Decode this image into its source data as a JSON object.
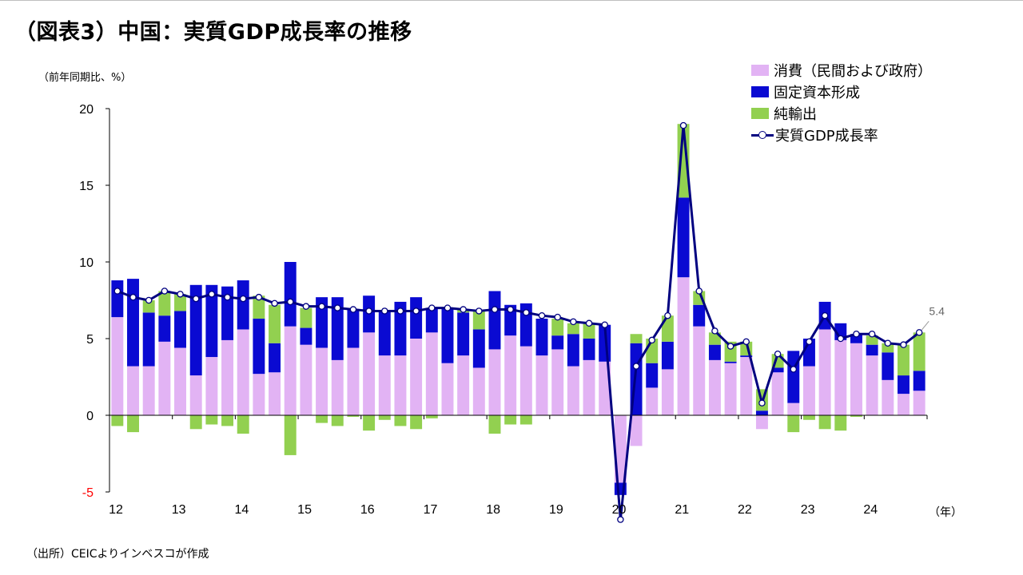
{
  "title": "（図表3）中国：実質GDP成長率の推移",
  "unit_label": "（前年同期比、%）",
  "source": "（出所）CEICよりインベスコが作成",
  "colors": {
    "consumption": "#e2b3f4",
    "investment": "#0a0ad2",
    "net_exports": "#92d050",
    "gdp_line": "#000080",
    "negative_tick": "#ff0000"
  },
  "legend": [
    {
      "key": "consumption",
      "label": "消費（民間および政府）"
    },
    {
      "key": "investment",
      "label": "固定資本形成"
    },
    {
      "key": "net_exports",
      "label": "純輸出"
    },
    {
      "key": "gdp",
      "label": "実質GDP成長率"
    }
  ],
  "chart_data": {
    "type": "bar",
    "stacked": true,
    "ylim": [
      -5,
      20
    ],
    "yticks": [
      -5,
      0,
      5,
      10,
      15,
      20
    ],
    "xlabel": "（年）",
    "year_labels": [
      "12",
      "13",
      "14",
      "15",
      "16",
      "17",
      "18",
      "19",
      "20",
      "21",
      "22",
      "23",
      "24"
    ],
    "quarters": [
      "2012Q1",
      "2012Q2",
      "2012Q3",
      "2012Q4",
      "2013Q1",
      "2013Q2",
      "2013Q3",
      "2013Q4",
      "2014Q1",
      "2014Q2",
      "2014Q3",
      "2014Q4",
      "2015Q1",
      "2015Q2",
      "2015Q3",
      "2015Q4",
      "2016Q1",
      "2016Q2",
      "2016Q3",
      "2016Q4",
      "2017Q1",
      "2017Q2",
      "2017Q3",
      "2017Q4",
      "2018Q1",
      "2018Q2",
      "2018Q3",
      "2018Q4",
      "2019Q1",
      "2019Q2",
      "2019Q3",
      "2019Q4",
      "2020Q1",
      "2020Q2",
      "2020Q3",
      "2020Q4",
      "2021Q1",
      "2021Q2",
      "2021Q3",
      "2021Q4",
      "2022Q1",
      "2022Q2",
      "2022Q3",
      "2022Q4",
      "2023Q1",
      "2023Q2",
      "2023Q3",
      "2023Q4",
      "2024Q1",
      "2024Q2",
      "2024Q3",
      "2024Q4"
    ],
    "series": [
      {
        "name": "消費（民間および政府）",
        "key": "consumption",
        "values": [
          6.4,
          3.2,
          3.2,
          4.8,
          4.4,
          2.6,
          3.8,
          4.9,
          5.6,
          2.7,
          2.8,
          5.8,
          4.6,
          4.4,
          3.6,
          4.4,
          5.4,
          3.9,
          3.9,
          5.0,
          5.4,
          3.4,
          3.9,
          3.1,
          4.3,
          5.2,
          4.5,
          3.9,
          4.3,
          3.2,
          3.6,
          3.5,
          -4.4,
          -2.0,
          1.8,
          3.0,
          9.0,
          5.8,
          3.6,
          3.4,
          3.8,
          -0.9,
          2.8,
          0.8,
          3.2,
          5.6,
          4.9,
          4.7,
          3.9,
          2.3,
          1.4,
          1.6
        ]
      },
      {
        "name": "固定資本形成",
        "key": "investment",
        "values": [
          2.4,
          5.7,
          3.5,
          1.7,
          2.4,
          5.9,
          4.7,
          3.5,
          3.2,
          3.6,
          1.9,
          4.2,
          1.1,
          3.3,
          4.1,
          2.5,
          2.4,
          2.9,
          3.5,
          2.7,
          1.6,
          3.6,
          2.8,
          2.5,
          3.8,
          2.0,
          2.8,
          2.4,
          0.9,
          2.1,
          1.4,
          2.4,
          -0.8,
          4.7,
          1.6,
          1.8,
          5.2,
          1.4,
          1.0,
          0.1,
          0.1,
          0.3,
          0.3,
          3.4,
          1.8,
          1.8,
          1.1,
          0.6,
          0.7,
          1.8,
          1.2,
          1.3
        ]
      },
      {
        "name": "純輸出",
        "key": "net_exports",
        "values": [
          -0.7,
          -1.1,
          0.8,
          1.6,
          1.1,
          -0.9,
          -0.6,
          -0.7,
          -1.2,
          1.5,
          2.5,
          -2.6,
          1.3,
          -0.5,
          -0.7,
          -0.1,
          -1.0,
          -0.3,
          -0.7,
          -0.9,
          -0.2,
          0.0,
          0.2,
          1.2,
          -1.2,
          -0.6,
          -0.6,
          0.0,
          1.1,
          0.7,
          1.0,
          0.0,
          0.0,
          0.6,
          1.6,
          1.7,
          4.8,
          0.9,
          0.8,
          1.3,
          0.9,
          1.4,
          0.9,
          -1.1,
          -0.3,
          -0.9,
          -1.0,
          -0.1,
          0.6,
          0.6,
          2.0,
          2.5
        ]
      },
      {
        "name": "実質GDP成長率",
        "key": "gdp",
        "type": "line",
        "values": [
          8.1,
          7.7,
          7.5,
          8.1,
          7.9,
          7.6,
          7.9,
          7.7,
          7.6,
          7.7,
          7.3,
          7.4,
          7.1,
          7.1,
          7.0,
          6.9,
          6.8,
          6.8,
          6.8,
          6.8,
          7.0,
          7.0,
          6.9,
          6.8,
          6.9,
          6.9,
          6.7,
          6.5,
          6.4,
          6.1,
          6.0,
          5.9,
          -6.8,
          3.2,
          4.9,
          6.5,
          18.9,
          8.1,
          5.5,
          4.5,
          4.8,
          0.8,
          4.0,
          3.0,
          4.8,
          6.5,
          5.0,
          5.3,
          5.3,
          4.7,
          4.6,
          5.4
        ]
      }
    ],
    "annotation": {
      "text": "5.4",
      "index": 51
    },
    "grid": false,
    "legend_position": "top-right"
  }
}
